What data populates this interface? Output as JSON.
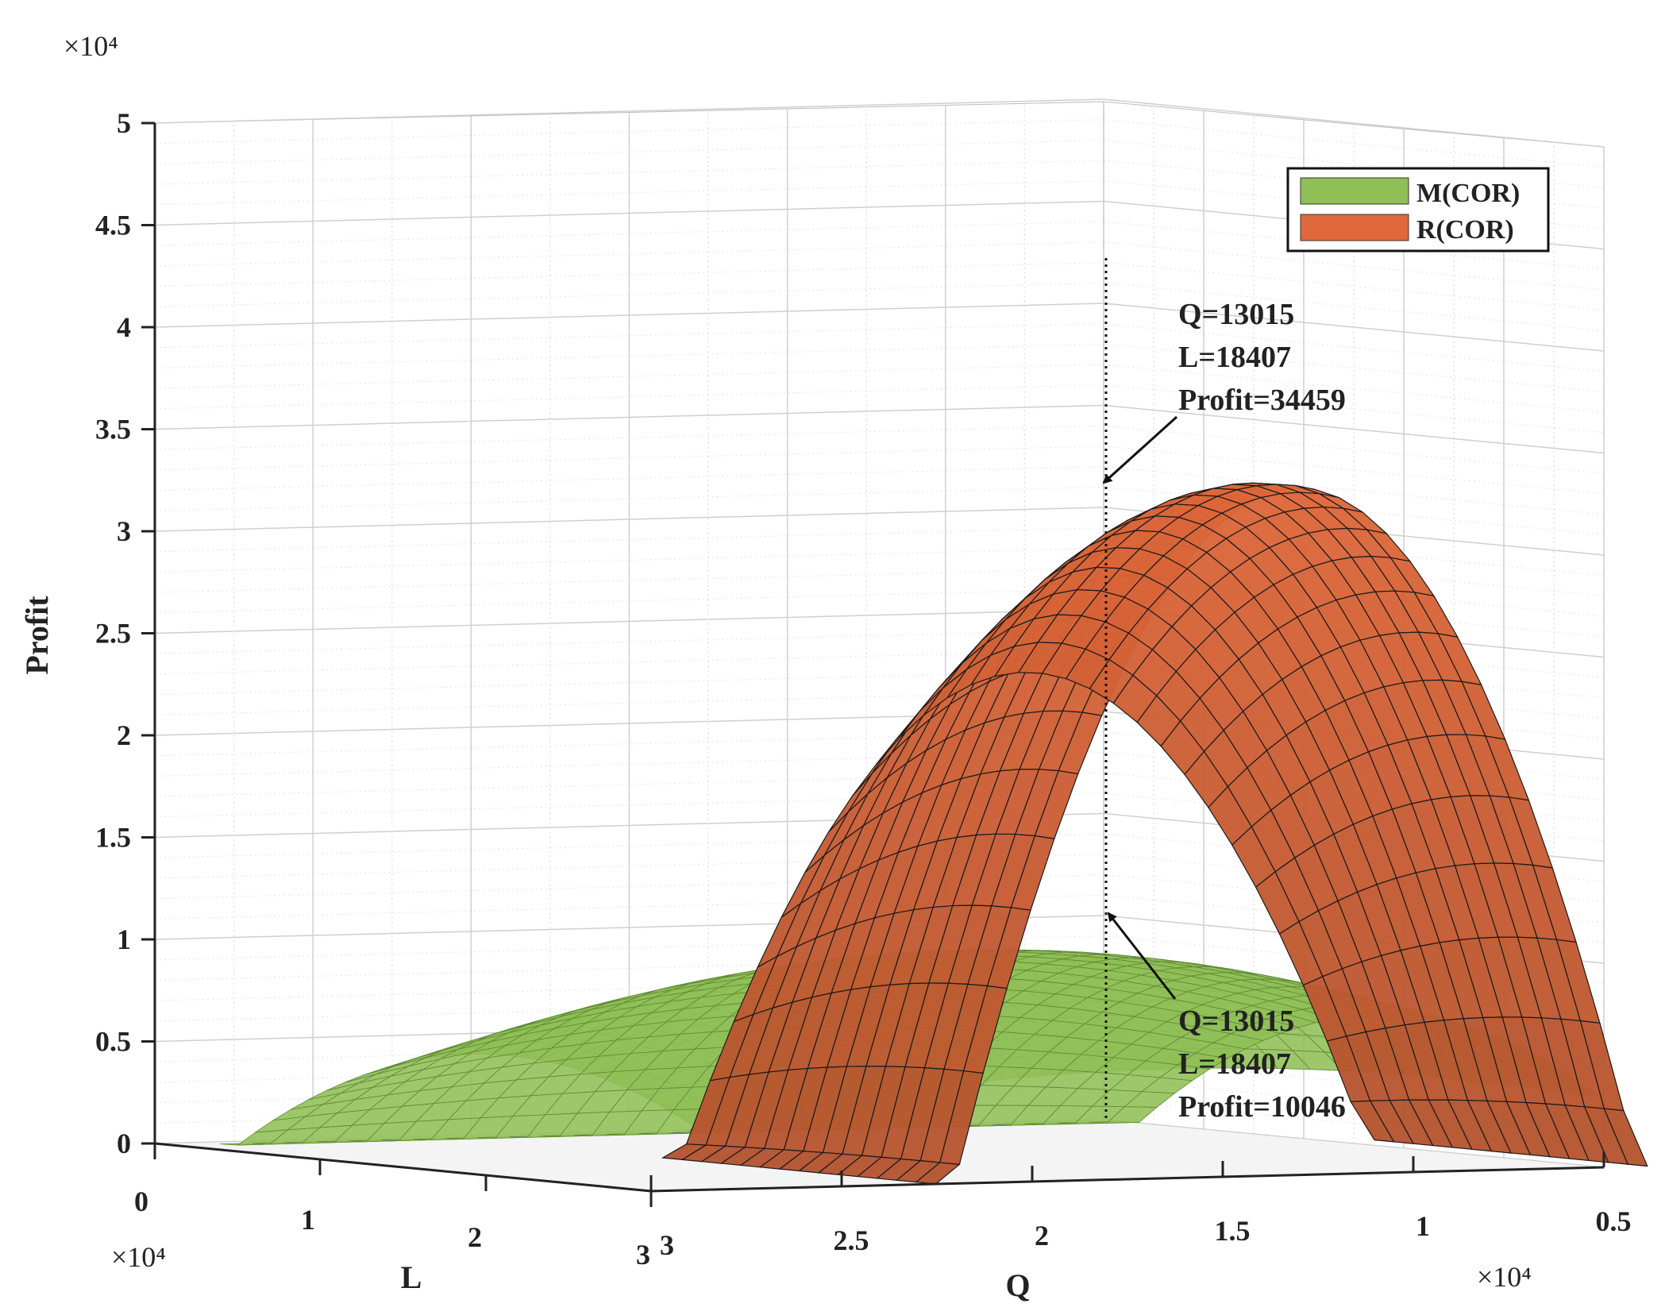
{
  "chart_data": {
    "type": "surface",
    "zlabel": "Profit",
    "xlabel": "L",
    "ylabel": "Q",
    "z_exponent": "×10⁴",
    "l_exponent": "×10⁴",
    "q_exponent": "×10⁴",
    "z_ticks": [
      "0",
      "0.5",
      "1",
      "1.5",
      "2",
      "2.5",
      "3",
      "3.5",
      "4",
      "4.5",
      "5"
    ],
    "l_ticks": [
      "0",
      "1",
      "2",
      "3"
    ],
    "q_ticks": [
      "3",
      "2.5",
      "2",
      "1.5",
      "1",
      "0.5"
    ],
    "zlim": [
      0,
      50000
    ],
    "llim": [
      0,
      30000
    ],
    "qlim": [
      5000,
      30000
    ],
    "grid": true,
    "legend_position": "top-right",
    "series": [
      {
        "name": "M(COR)",
        "color": "#8fbf55",
        "peak": {
          "Q": 13015,
          "L": 18407,
          "Profit": 10046
        }
      },
      {
        "name": "R(COR)",
        "color": "#e0683a",
        "peak": {
          "Q": 13015,
          "L": 18407,
          "Profit": 34459
        }
      }
    ],
    "annotations": [
      {
        "lines": [
          "Q=13015",
          "L=18407",
          "Profit=34459"
        ]
      },
      {
        "lines": [
          "Q=13015",
          "L=18407",
          "Profit=10046"
        ]
      }
    ]
  }
}
